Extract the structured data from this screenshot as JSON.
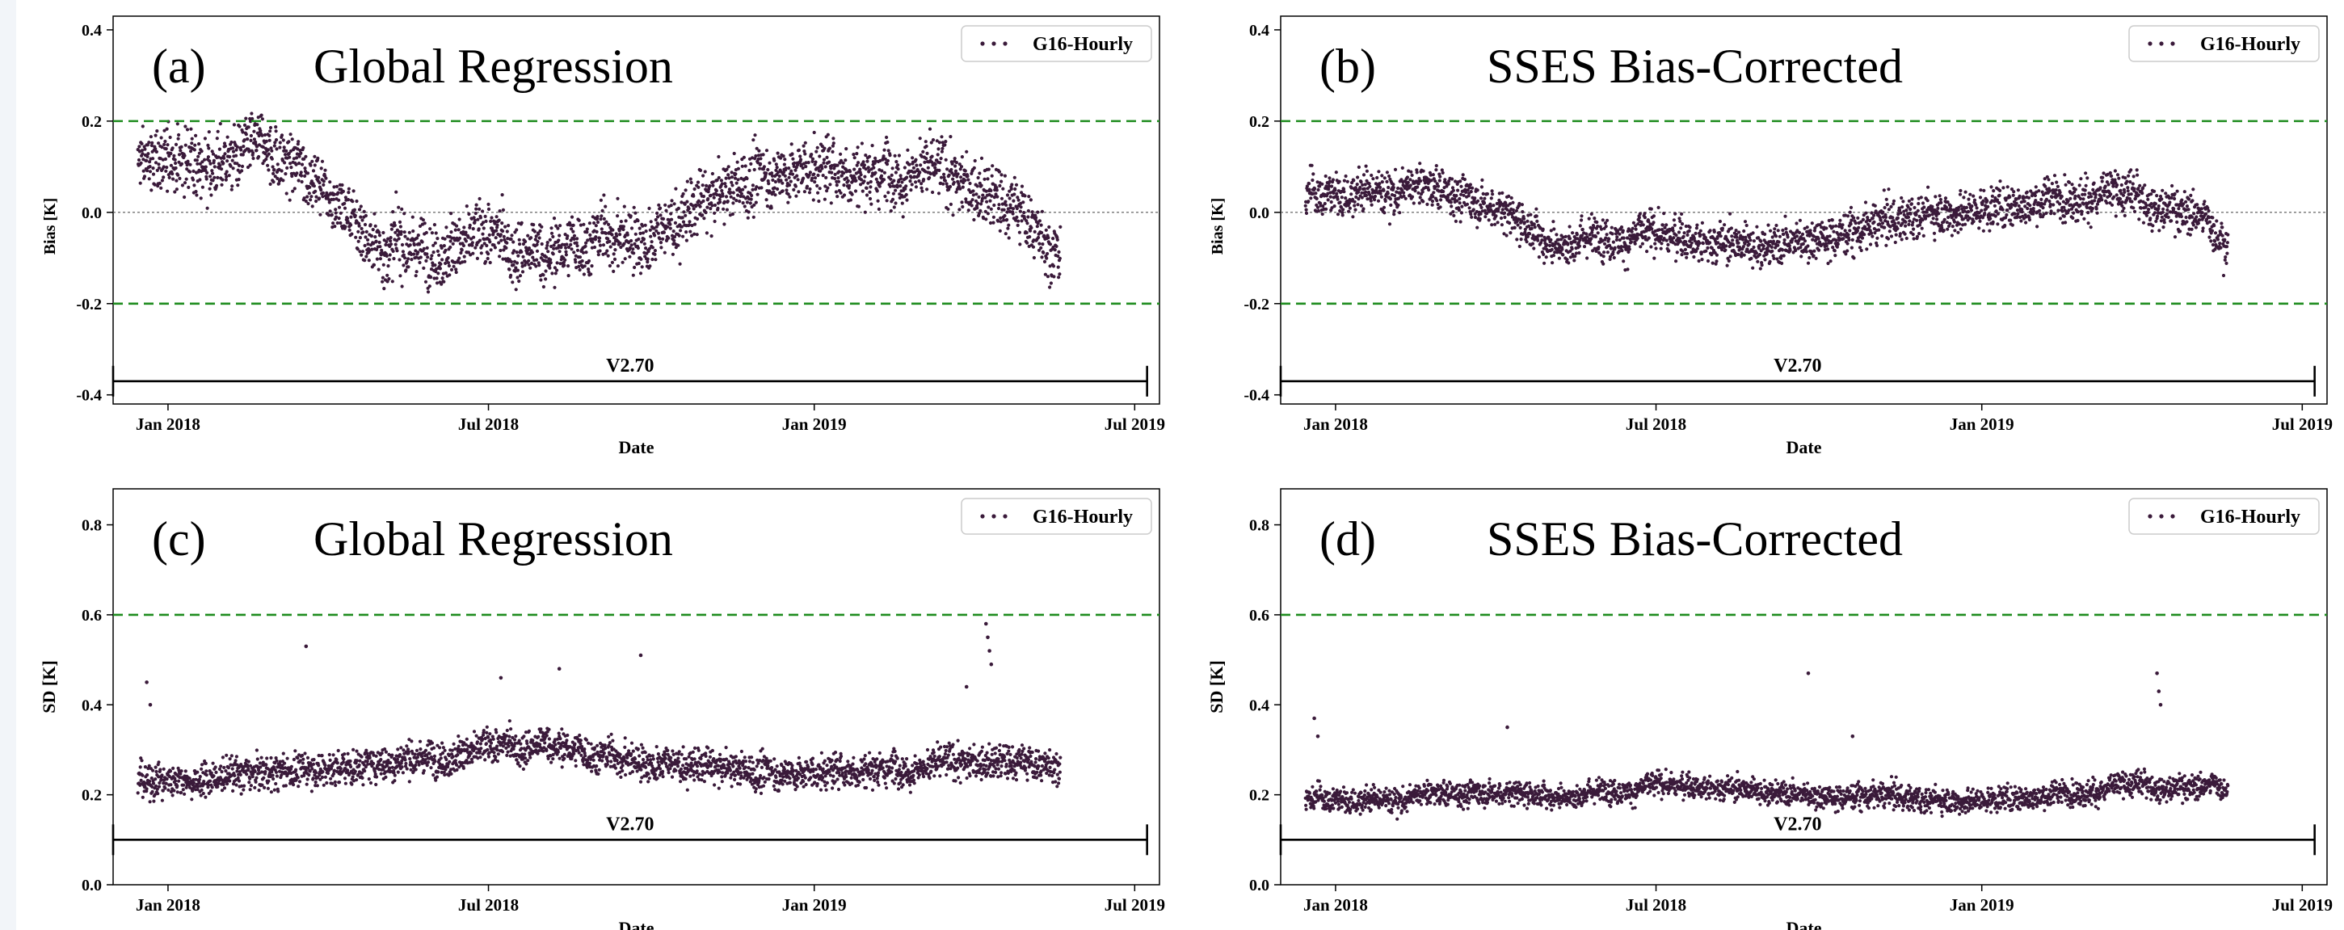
{
  "colors": {
    "points": "#3a1a3a",
    "threshold": "#1e8c1e",
    "zero": "#555555",
    "axis": "#000000"
  },
  "chart_data": [
    {
      "type": "scatter",
      "panel": "(a)",
      "title": "Global Regression",
      "xlabel": "Date",
      "ylabel": "Bias [K]",
      "xlim": [
        "2017-12-01",
        "2019-07-15"
      ],
      "ylim": [
        -0.42,
        0.43
      ],
      "x_ticks": [
        "Jan 2018",
        "Jul 2018",
        "Jan 2019",
        "Jul 2019"
      ],
      "y_ticks": [
        "0.4",
        "0.2",
        "0.0",
        "-0.2",
        "-0.4"
      ],
      "legend": "G16-Hourly",
      "legend_position": "top-right",
      "grid": false,
      "thresholds": [
        0.2,
        -0.2
      ],
      "zero_line": 0.0,
      "version_span": {
        "label": "V2.70",
        "from": "2017-12-01",
        "to": "2019-07-08",
        "y": -0.37
      },
      "data_range": [
        "2017-12-15",
        "2019-05-20"
      ],
      "trend": [
        [
          "2017-12-15",
          0.11
        ],
        [
          "2018-02-01",
          0.12
        ],
        [
          "2018-03-01",
          0.13
        ],
        [
          "2018-04-01",
          0.06
        ],
        [
          "2018-05-01",
          -0.08
        ],
        [
          "2018-06-01",
          -0.07
        ],
        [
          "2018-07-01",
          -0.06
        ],
        [
          "2018-08-01",
          -0.1
        ],
        [
          "2018-09-01",
          -0.05
        ],
        [
          "2018-10-01",
          -0.06
        ],
        [
          "2018-11-01",
          0.02
        ],
        [
          "2018-12-01",
          0.08
        ],
        [
          "2019-01-01",
          0.1
        ],
        [
          "2019-02-01",
          0.09
        ],
        [
          "2019-03-01",
          0.11
        ],
        [
          "2019-04-01",
          0.05
        ],
        [
          "2019-05-01",
          -0.01
        ],
        [
          "2019-05-20",
          -0.1
        ]
      ],
      "spread": 0.045
    },
    {
      "type": "scatter",
      "panel": "(b)",
      "title": "SSES Bias-Corrected",
      "xlabel": "Date",
      "ylabel": "Bias [K]",
      "xlim": [
        "2017-12-01",
        "2019-07-15"
      ],
      "ylim": [
        -0.42,
        0.43
      ],
      "x_ticks": [
        "Jan 2018",
        "Jul 2018",
        "Jan 2019",
        "Jul 2019"
      ],
      "y_ticks": [
        "0.4",
        "0.2",
        "0.0",
        "-0.2",
        "-0.4"
      ],
      "legend": "G16-Hourly",
      "legend_position": "top-right",
      "grid": false,
      "thresholds": [
        0.2,
        -0.2
      ],
      "zero_line": 0.0,
      "version_span": {
        "label": "V2.70",
        "from": "2017-12-01",
        "to": "2019-07-08",
        "y": -0.37
      },
      "data_range": [
        "2017-12-15",
        "2019-05-20"
      ],
      "trend": [
        [
          "2017-12-15",
          0.04
        ],
        [
          "2018-02-01",
          0.05
        ],
        [
          "2018-03-01",
          0.05
        ],
        [
          "2018-04-01",
          0.02
        ],
        [
          "2018-05-01",
          -0.06
        ],
        [
          "2018-06-01",
          -0.05
        ],
        [
          "2018-07-01",
          -0.05
        ],
        [
          "2018-08-01",
          -0.06
        ],
        [
          "2018-09-01",
          -0.07
        ],
        [
          "2018-10-01",
          -0.05
        ],
        [
          "2018-11-01",
          -0.03
        ],
        [
          "2018-12-01",
          0.0
        ],
        [
          "2019-01-01",
          0.01
        ],
        [
          "2019-02-01",
          0.03
        ],
        [
          "2019-03-01",
          0.04
        ],
        [
          "2019-04-01",
          0.03
        ],
        [
          "2019-05-01",
          0.0
        ],
        [
          "2019-05-20",
          -0.06
        ]
      ],
      "spread": 0.03
    },
    {
      "type": "scatter",
      "panel": "(c)",
      "title": "Global Regression",
      "xlabel": "Date",
      "ylabel": "SD [K]",
      "xlim": [
        "2017-12-01",
        "2019-07-15"
      ],
      "ylim": [
        0.0,
        0.88
      ],
      "x_ticks": [
        "Jan 2018",
        "Jul 2018",
        "Jan 2019",
        "Jul 2019"
      ],
      "y_ticks": [
        "0.8",
        "0.6",
        "0.4",
        "0.2",
        "0.0"
      ],
      "legend": "G16-Hourly",
      "legend_position": "top-right",
      "grid": false,
      "thresholds": [
        0.6
      ],
      "version_span": {
        "label": "V2.70",
        "from": "2017-12-01",
        "to": "2019-07-08",
        "y": 0.1
      },
      "data_range": [
        "2017-12-15",
        "2019-05-20"
      ],
      "trend": [
        [
          "2017-12-15",
          0.23
        ],
        [
          "2018-02-01",
          0.24
        ],
        [
          "2018-03-01",
          0.25
        ],
        [
          "2018-04-01",
          0.26
        ],
        [
          "2018-05-01",
          0.27
        ],
        [
          "2018-06-01",
          0.29
        ],
        [
          "2018-07-01",
          0.3
        ],
        [
          "2018-08-01",
          0.31
        ],
        [
          "2018-09-01",
          0.29
        ],
        [
          "2018-10-01",
          0.27
        ],
        [
          "2018-11-01",
          0.26
        ],
        [
          "2018-12-01",
          0.25
        ],
        [
          "2019-01-01",
          0.25
        ],
        [
          "2019-02-01",
          0.26
        ],
        [
          "2019-03-01",
          0.27
        ],
        [
          "2019-04-01",
          0.27
        ],
        [
          "2019-05-20",
          0.27
        ]
      ],
      "spread": 0.025,
      "outliers": [
        [
          "2017-12-20",
          0.45
        ],
        [
          "2017-12-22",
          0.4
        ],
        [
          "2018-03-20",
          0.53
        ],
        [
          "2018-07-08",
          0.46
        ],
        [
          "2018-08-10",
          0.48
        ],
        [
          "2018-09-25",
          0.51
        ],
        [
          "2019-03-28",
          0.44
        ],
        [
          "2019-04-08",
          0.58
        ],
        [
          "2019-04-09",
          0.55
        ],
        [
          "2019-04-10",
          0.52
        ],
        [
          "2019-04-11",
          0.49
        ]
      ]
    },
    {
      "type": "scatter",
      "panel": "(d)",
      "title": "SSES Bias-Corrected",
      "xlabel": "Date",
      "ylabel": "SD [K]",
      "xlim": [
        "2017-12-01",
        "2019-07-15"
      ],
      "ylim": [
        0.0,
        0.88
      ],
      "x_ticks": [
        "Jan 2018",
        "Jul 2018",
        "Jan 2019",
        "Jul 2019"
      ],
      "y_ticks": [
        "0.8",
        "0.6",
        "0.4",
        "0.2",
        "0.0"
      ],
      "legend": "G16-Hourly",
      "legend_position": "top-right",
      "grid": false,
      "thresholds": [
        0.6
      ],
      "version_span": {
        "label": "V2.70",
        "from": "2017-12-01",
        "to": "2019-07-08",
        "y": 0.1
      },
      "data_range": [
        "2017-12-15",
        "2019-05-20"
      ],
      "trend": [
        [
          "2017-12-15",
          0.19
        ],
        [
          "2018-02-01",
          0.19
        ],
        [
          "2018-03-01",
          0.2
        ],
        [
          "2018-04-01",
          0.21
        ],
        [
          "2018-05-01",
          0.2
        ],
        [
          "2018-06-01",
          0.21
        ],
        [
          "2018-07-01",
          0.22
        ],
        [
          "2018-08-01",
          0.22
        ],
        [
          "2018-09-01",
          0.21
        ],
        [
          "2018-10-01",
          0.2
        ],
        [
          "2018-11-01",
          0.2
        ],
        [
          "2018-12-01",
          0.19
        ],
        [
          "2019-01-01",
          0.19
        ],
        [
          "2019-02-01",
          0.2
        ],
        [
          "2019-03-01",
          0.21
        ],
        [
          "2019-04-01",
          0.22
        ],
        [
          "2019-05-20",
          0.22
        ]
      ],
      "spread": 0.018,
      "outliers": [
        [
          "2017-12-20",
          0.37
        ],
        [
          "2017-12-22",
          0.33
        ],
        [
          "2018-04-08",
          0.35
        ],
        [
          "2018-09-25",
          0.47
        ],
        [
          "2018-10-20",
          0.33
        ],
        [
          "2019-04-10",
          0.47
        ],
        [
          "2019-04-11",
          0.43
        ],
        [
          "2019-04-12",
          0.4
        ]
      ]
    }
  ]
}
